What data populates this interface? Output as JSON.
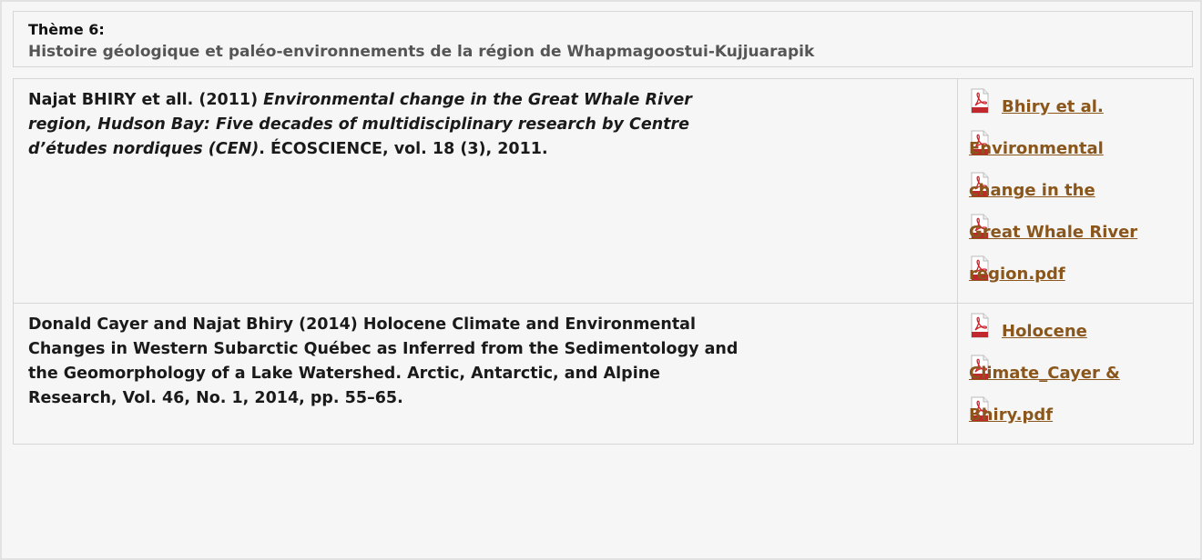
{
  "header": {
    "theme": "Thème 6:",
    "title": "Histoire géologique et paléo-environnements de la région de Whapmagoostui-Kujjuarapik"
  },
  "table": {
    "rows": [
      {
        "ref": {
          "authors": "Najat BHIRY et all. (2011) ",
          "title": "Environmental change in the Great Whale River region, Hudson Bay: Five decades of multidisciplinary research by Centre d’études nordiques (CEN)",
          "source": ". ÉCOSCIENCE, vol. 18 (3), 2011."
        },
        "link": [
          "Bhiry et al.",
          "Environmental",
          "change in the",
          "Great Whale River",
          "region.pdf"
        ]
      },
      {
        "ref": {
          "authors": "Donald Cayer and Najat Bhiry (2014) Holocene Climate and Environmental Changes in Western Subarctic Québec as Inferred from the Sedimentology and the Geomorphology of a Lake Watershed. Arctic, Antarctic, and Alpine Research, Vol. 46, No. 1, 2014, pp. 55–65."
        },
        "link": [
          "Holocene",
          "Climate_Cayer &",
          "Bhiry.pdf"
        ]
      }
    ]
  }
}
